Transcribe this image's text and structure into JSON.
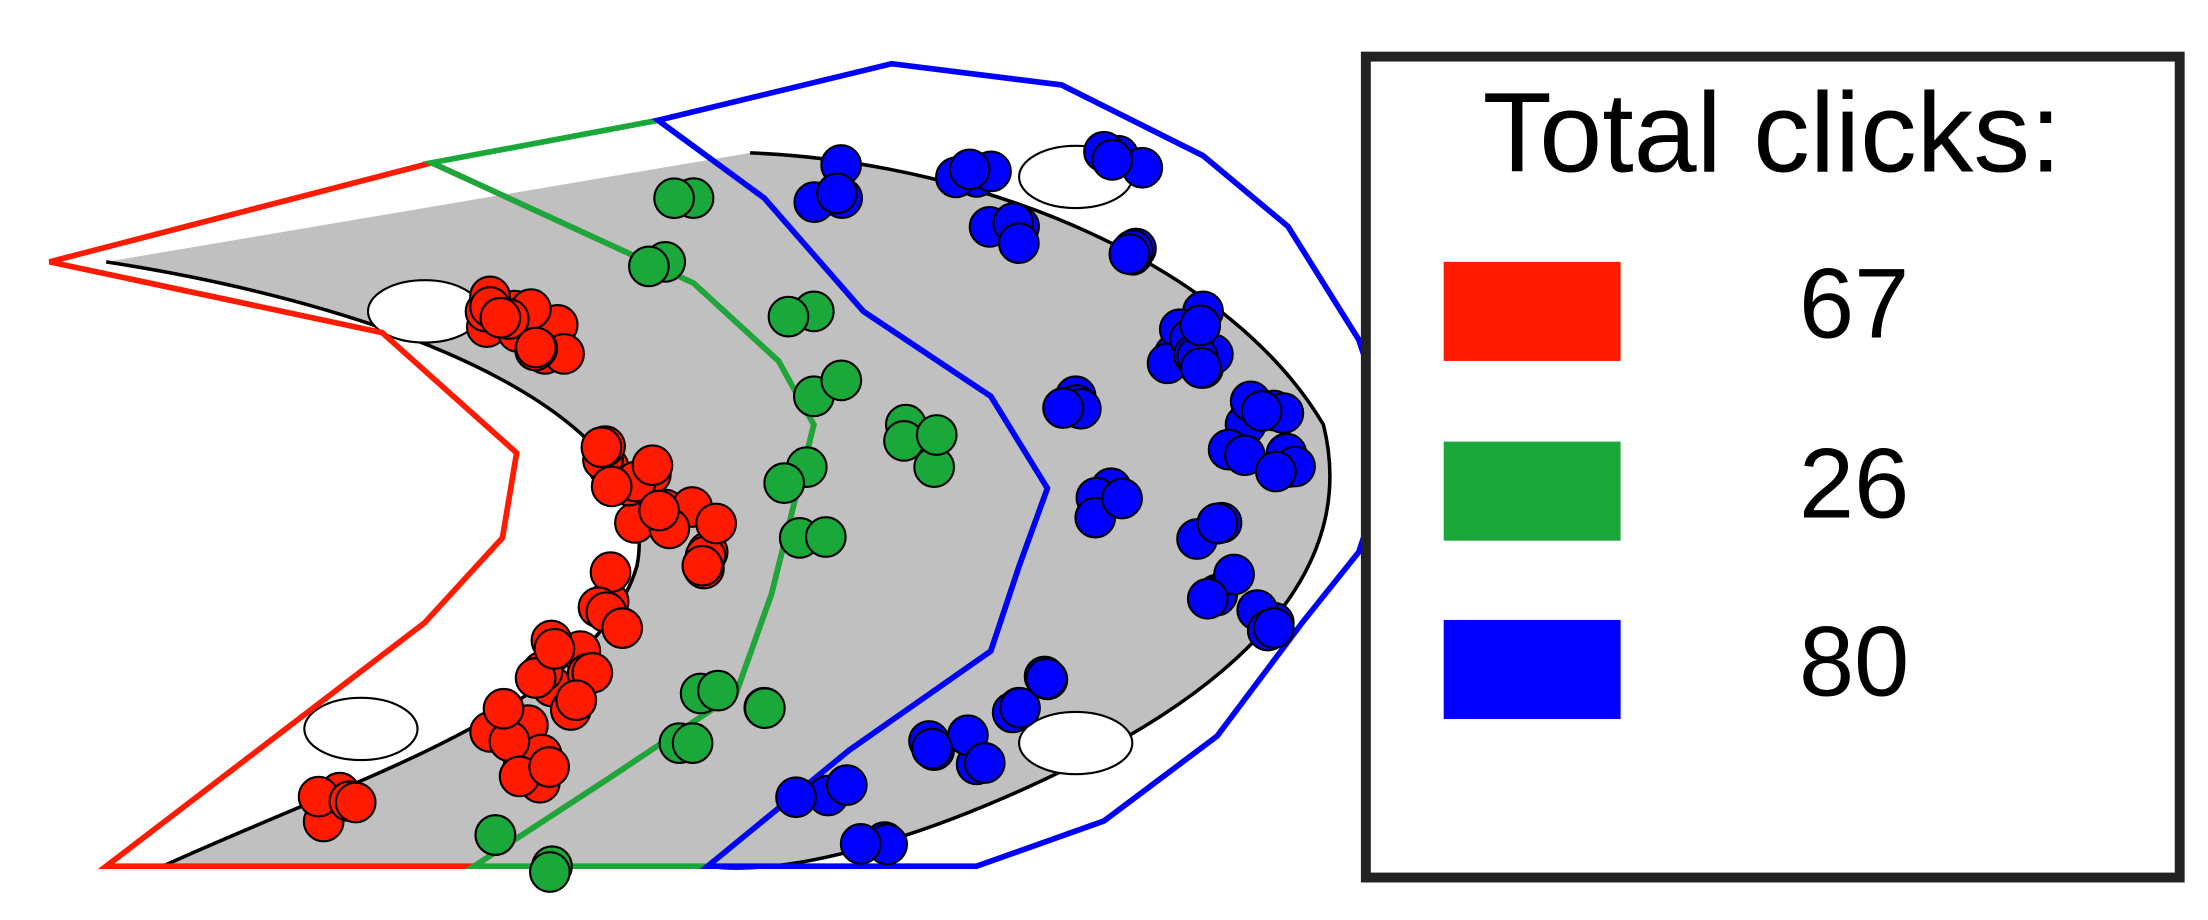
{
  "legend": {
    "title": "Total clicks:",
    "items": [
      {
        "color": "#ff1a00",
        "value": 67
      },
      {
        "color": "#1aa83a",
        "value": 26
      },
      {
        "color": "#0000ff",
        "value": 80
      }
    ]
  }
}
